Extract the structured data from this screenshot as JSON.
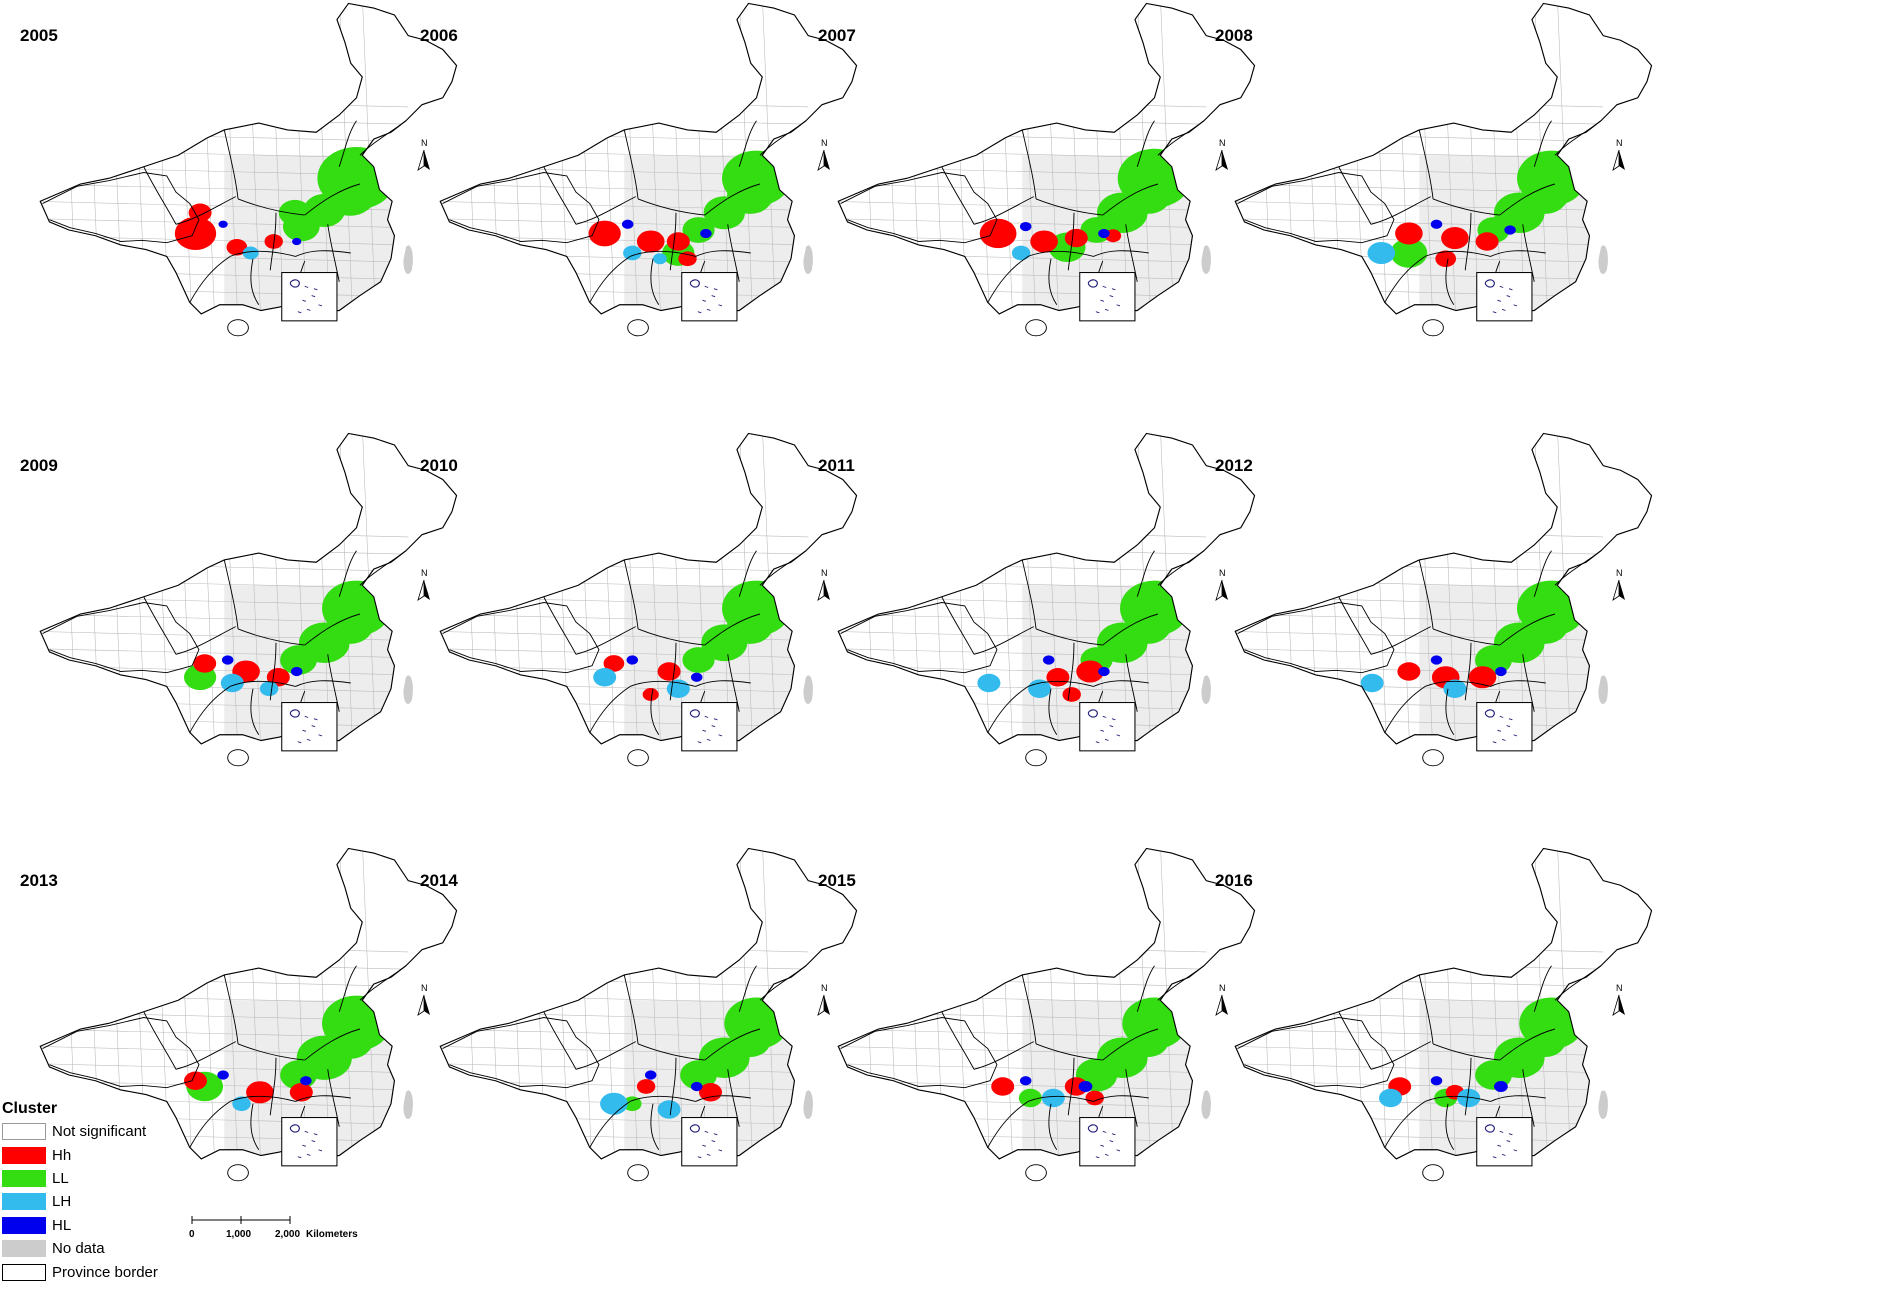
{
  "maps": [
    {
      "year": "2005",
      "clusters": [
        [
          "LL",
          1.25,
          0.4,
          34
        ],
        [
          "LL",
          1.18,
          0.55,
          22
        ],
        [
          "LL",
          0.9,
          0.68,
          18
        ],
        [
          "LL",
          0.65,
          0.82,
          16
        ],
        [
          "LL",
          0.58,
          0.7,
          14
        ],
        [
          "Hh",
          -0.5,
          0.88,
          18
        ],
        [
          "Hh",
          -0.45,
          0.7,
          10
        ],
        [
          "Hh",
          -0.05,
          1.0,
          9
        ],
        [
          "Hh",
          0.35,
          0.95,
          8
        ],
        [
          "LH",
          -0.85,
          1.28,
          9
        ],
        [
          "LH",
          0.1,
          1.05,
          7
        ],
        [
          "HL",
          -0.2,
          0.8,
          4
        ],
        [
          "HL",
          0.6,
          0.95,
          4
        ]
      ]
    },
    {
      "year": "2006",
      "clusters": [
        [
          "LL",
          1.25,
          0.4,
          30
        ],
        [
          "LL",
          1.18,
          0.55,
          20
        ],
        [
          "LL",
          0.9,
          0.7,
          18
        ],
        [
          "LL",
          0.4,
          1.05,
          14
        ],
        [
          "LL",
          0.62,
          0.85,
          14
        ],
        [
          "Hh",
          -0.4,
          0.88,
          14
        ],
        [
          "Hh",
          0.1,
          0.95,
          12
        ],
        [
          "Hh",
          0.4,
          0.95,
          10
        ],
        [
          "Hh",
          0.5,
          1.1,
          8
        ],
        [
          "LH",
          -0.88,
          1.28,
          9
        ],
        [
          "LH",
          -0.1,
          1.05,
          8
        ],
        [
          "LH",
          0.2,
          1.1,
          6
        ],
        [
          "HL",
          -0.15,
          0.8,
          5
        ],
        [
          "HL",
          0.7,
          0.88,
          5
        ]
      ]
    },
    {
      "year": "2007",
      "clusters": [
        [
          "LL",
          1.25,
          0.4,
          32
        ],
        [
          "LL",
          1.18,
          0.55,
          20
        ],
        [
          "LL",
          0.9,
          0.7,
          22
        ],
        [
          "LL",
          0.3,
          1.0,
          16
        ],
        [
          "LL",
          0.62,
          0.85,
          14
        ],
        [
          "Hh",
          -0.45,
          0.88,
          16
        ],
        [
          "Hh",
          0.05,
          0.95,
          12
        ],
        [
          "Hh",
          0.4,
          0.92,
          10
        ],
        [
          "Hh",
          0.8,
          0.9,
          7
        ],
        [
          "LH",
          -0.85,
          1.28,
          9
        ],
        [
          "LH",
          -0.2,
          1.05,
          8
        ],
        [
          "HL",
          -0.15,
          0.82,
          5
        ],
        [
          "HL",
          0.7,
          0.88,
          5
        ]
      ]
    },
    {
      "year": "2008",
      "clusters": [
        [
          "LL",
          1.25,
          0.4,
          30
        ],
        [
          "LL",
          1.18,
          0.55,
          20
        ],
        [
          "LL",
          0.9,
          0.7,
          22
        ],
        [
          "LL",
          -0.3,
          1.05,
          16
        ],
        [
          "LL",
          0.62,
          0.85,
          14
        ],
        [
          "Hh",
          -0.3,
          0.88,
          12
        ],
        [
          "Hh",
          0.2,
          0.92,
          12
        ],
        [
          "Hh",
          0.55,
          0.95,
          10
        ],
        [
          "Hh",
          0.1,
          1.1,
          9
        ],
        [
          "LH",
          -0.85,
          1.28,
          9
        ],
        [
          "LH",
          -0.6,
          1.05,
          12
        ],
        [
          "HL",
          0.0,
          0.8,
          5
        ],
        [
          "HL",
          0.8,
          0.85,
          5
        ]
      ]
    },
    {
      "year": "2009",
      "clusters": [
        [
          "LL",
          1.25,
          0.4,
          30
        ],
        [
          "LL",
          1.18,
          0.55,
          20
        ],
        [
          "LL",
          0.9,
          0.7,
          22
        ],
        [
          "LL",
          -0.45,
          1.0,
          14
        ],
        [
          "LL",
          0.62,
          0.85,
          16
        ],
        [
          "Hh",
          -0.4,
          0.88,
          10
        ],
        [
          "Hh",
          0.05,
          0.95,
          12
        ],
        [
          "Hh",
          0.4,
          1.0,
          10
        ],
        [
          "LH",
          -0.85,
          1.28,
          9
        ],
        [
          "LH",
          -0.1,
          1.05,
          10
        ],
        [
          "LH",
          0.3,
          1.1,
          8
        ],
        [
          "HL",
          -0.15,
          0.85,
          5
        ],
        [
          "HL",
          0.6,
          0.95,
          5
        ]
      ]
    },
    {
      "year": "2010",
      "clusters": [
        [
          "LL",
          1.25,
          0.4,
          30
        ],
        [
          "LL",
          1.18,
          0.55,
          20
        ],
        [
          "LL",
          0.9,
          0.7,
          20
        ],
        [
          "LL",
          0.62,
          0.85,
          14
        ],
        [
          "Hh",
          -0.3,
          0.88,
          9
        ],
        [
          "Hh",
          0.3,
          0.95,
          10
        ],
        [
          "Hh",
          0.1,
          1.15,
          7
        ],
        [
          "LH",
          -0.88,
          1.28,
          10
        ],
        [
          "LH",
          -0.4,
          1.0,
          10
        ],
        [
          "LH",
          0.4,
          1.1,
          10
        ],
        [
          "HL",
          -0.1,
          0.85,
          5
        ],
        [
          "HL",
          0.6,
          1.0,
          5
        ]
      ]
    },
    {
      "year": "2011",
      "clusters": [
        [
          "LL",
          1.25,
          0.4,
          30
        ],
        [
          "LL",
          1.18,
          0.55,
          20
        ],
        [
          "LL",
          0.9,
          0.7,
          22
        ],
        [
          "LL",
          0.62,
          0.85,
          14
        ],
        [
          "Hh",
          0.55,
          0.95,
          12
        ],
        [
          "Hh",
          0.2,
          1.0,
          10
        ],
        [
          "Hh",
          0.35,
          1.15,
          8
        ],
        [
          "LH",
          -0.85,
          1.28,
          10
        ],
        [
          "LH",
          -0.55,
          1.05,
          10
        ],
        [
          "LH",
          0.0,
          1.1,
          10
        ],
        [
          "HL",
          0.1,
          0.85,
          5
        ],
        [
          "HL",
          0.7,
          0.95,
          5
        ]
      ]
    },
    {
      "year": "2012",
      "clusters": [
        [
          "LL",
          1.25,
          0.4,
          30
        ],
        [
          "LL",
          1.18,
          0.55,
          20
        ],
        [
          "LL",
          0.9,
          0.7,
          22
        ],
        [
          "LL",
          0.62,
          0.85,
          16
        ],
        [
          "Hh",
          -0.3,
          0.95,
          10
        ],
        [
          "Hh",
          0.1,
          1.0,
          12
        ],
        [
          "Hh",
          0.5,
          1.0,
          12
        ],
        [
          "Hh",
          -0.85,
          1.25,
          7
        ],
        [
          "LH",
          -0.7,
          1.05,
          10
        ],
        [
          "LH",
          0.2,
          1.1,
          10
        ],
        [
          "HL",
          0.0,
          0.85,
          5
        ],
        [
          "HL",
          0.7,
          0.95,
          5
        ]
      ]
    },
    {
      "year": "2013",
      "clusters": [
        [
          "LL",
          1.25,
          0.4,
          30
        ],
        [
          "LL",
          1.18,
          0.55,
          20
        ],
        [
          "LL",
          0.9,
          0.7,
          24
        ],
        [
          "LL",
          -0.4,
          0.95,
          16
        ],
        [
          "LL",
          0.62,
          0.85,
          16
        ],
        [
          "Hh",
          -0.5,
          0.9,
          10
        ],
        [
          "Hh",
          0.2,
          1.0,
          12
        ],
        [
          "Hh",
          0.65,
          1.0,
          10
        ],
        [
          "LH",
          -0.85,
          1.28,
          10
        ],
        [
          "LH",
          0.0,
          1.1,
          8
        ],
        [
          "HL",
          -0.2,
          0.85,
          5
        ],
        [
          "HL",
          0.7,
          0.9,
          5
        ]
      ]
    },
    {
      "year": "2014",
      "clusters": [
        [
          "LL",
          1.25,
          0.4,
          28
        ],
        [
          "LL",
          1.18,
          0.55,
          18
        ],
        [
          "LL",
          0.9,
          0.7,
          22
        ],
        [
          "LL",
          0.62,
          0.85,
          16
        ],
        [
          "LL",
          -0.1,
          1.1,
          8
        ],
        [
          "Hh",
          0.75,
          1.0,
          10
        ],
        [
          "Hh",
          0.05,
          0.95,
          8
        ],
        [
          "Hh",
          -0.95,
          1.25,
          6
        ],
        [
          "LH",
          -0.88,
          1.25,
          10
        ],
        [
          "LH",
          -0.3,
          1.1,
          12
        ],
        [
          "LH",
          0.3,
          1.15,
          10
        ],
        [
          "HL",
          0.1,
          0.85,
          5
        ],
        [
          "HL",
          0.6,
          0.95,
          5
        ]
      ]
    },
    {
      "year": "2015",
      "clusters": [
        [
          "LL",
          1.25,
          0.4,
          28
        ],
        [
          "LL",
          1.18,
          0.55,
          18
        ],
        [
          "LL",
          0.9,
          0.7,
          22
        ],
        [
          "LL",
          0.62,
          0.85,
          18
        ],
        [
          "LL",
          -0.1,
          1.05,
          10
        ],
        [
          "Hh",
          -0.4,
          0.95,
          10
        ],
        [
          "Hh",
          0.4,
          0.95,
          10
        ],
        [
          "Hh",
          0.6,
          1.05,
          8
        ],
        [
          "LH",
          -0.88,
          1.28,
          10
        ],
        [
          "LH",
          0.15,
          1.05,
          10
        ],
        [
          "HL",
          -0.15,
          0.9,
          5
        ],
        [
          "HL",
          0.5,
          0.95,
          6
        ]
      ]
    },
    {
      "year": "2016",
      "clusters": [
        [
          "LL",
          1.25,
          0.4,
          28
        ],
        [
          "LL",
          1.18,
          0.55,
          18
        ],
        [
          "LL",
          0.9,
          0.7,
          22
        ],
        [
          "LL",
          0.62,
          0.85,
          16
        ],
        [
          "LL",
          0.1,
          1.05,
          10
        ],
        [
          "Hh",
          -0.4,
          0.95,
          10
        ],
        [
          "Hh",
          -0.9,
          1.25,
          8
        ],
        [
          "Hh",
          0.2,
          1.0,
          8
        ],
        [
          "LH",
          -0.5,
          1.05,
          10
        ],
        [
          "LH",
          0.35,
          1.05,
          10
        ],
        [
          "HL",
          0.0,
          0.9,
          5
        ],
        [
          "HL",
          0.7,
          0.95,
          6
        ]
      ]
    }
  ],
  "north_label": "N",
  "legend": {
    "title": "Cluster",
    "items": [
      {
        "label": "Not significant",
        "color": "#ffffff"
      },
      {
        "label": "Hh",
        "color": "#ff0000"
      },
      {
        "label": "LL",
        "color": "#33dd11"
      },
      {
        "label": "LH",
        "color": "#33bbee"
      },
      {
        "label": "HL",
        "color": "#0000ee"
      },
      {
        "label": "No data",
        "color": "#cccccc"
      },
      {
        "label": "Province border",
        "color": "#ffffff"
      }
    ]
  },
  "scale_bar": {
    "ticks": [
      "0",
      "1,000",
      "2,000"
    ],
    "unit": "Kilometers"
  },
  "colors": {
    "Hh": "#ff0000",
    "LL": "#33dd11",
    "LH": "#33bbee",
    "HL": "#0000ee",
    "no_data": "#cccccc",
    "province_border": "#000000",
    "county_border": "#bbbbbb"
  }
}
